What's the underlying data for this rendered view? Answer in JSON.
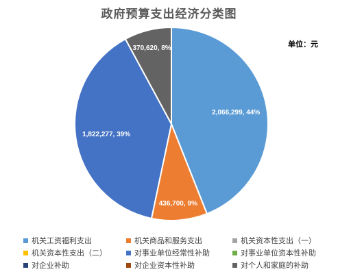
{
  "chart_data": {
    "type": "pie",
    "title": "政府预算支出经济分类图",
    "unit_label": "单位：元",
    "legend": [
      {
        "name": "机关工资福利支出",
        "color": "#5B9BD5"
      },
      {
        "name": "机关商品和服务支出",
        "color": "#ED7D31"
      },
      {
        "name": "机关资本性支出（一）",
        "color": "#A5A5A5"
      },
      {
        "name": "机关资本性支出（二）",
        "color": "#FFC000"
      },
      {
        "name": "对事业单位经常性补助",
        "color": "#4472C4"
      },
      {
        "name": "对事业单位资本性补助",
        "color": "#70AD47"
      },
      {
        "name": "对企业补助",
        "color": "#264478"
      },
      {
        "name": "对企业资本性补助",
        "color": "#9E480E"
      },
      {
        "name": "对个人和家庭的补助",
        "color": "#636363"
      }
    ],
    "slices": [
      {
        "name": "机关工资福利支出",
        "value": 2066299,
        "label": "2,066,299, 44%",
        "color": "#5B9BD5"
      },
      {
        "name": "机关商品和服务支出",
        "value": 436700,
        "label": "436,700, 9%",
        "color": "#ED7D31"
      },
      {
        "name": "对事业单位经常性补助",
        "value": 1822277,
        "label": "1,822,277, 39%",
        "color": "#4472C4"
      },
      {
        "name": "对个人和家庭的补助",
        "value": 370620,
        "label": "370,620, 8%",
        "color": "#636363"
      }
    ],
    "legend_position": "bottom"
  }
}
